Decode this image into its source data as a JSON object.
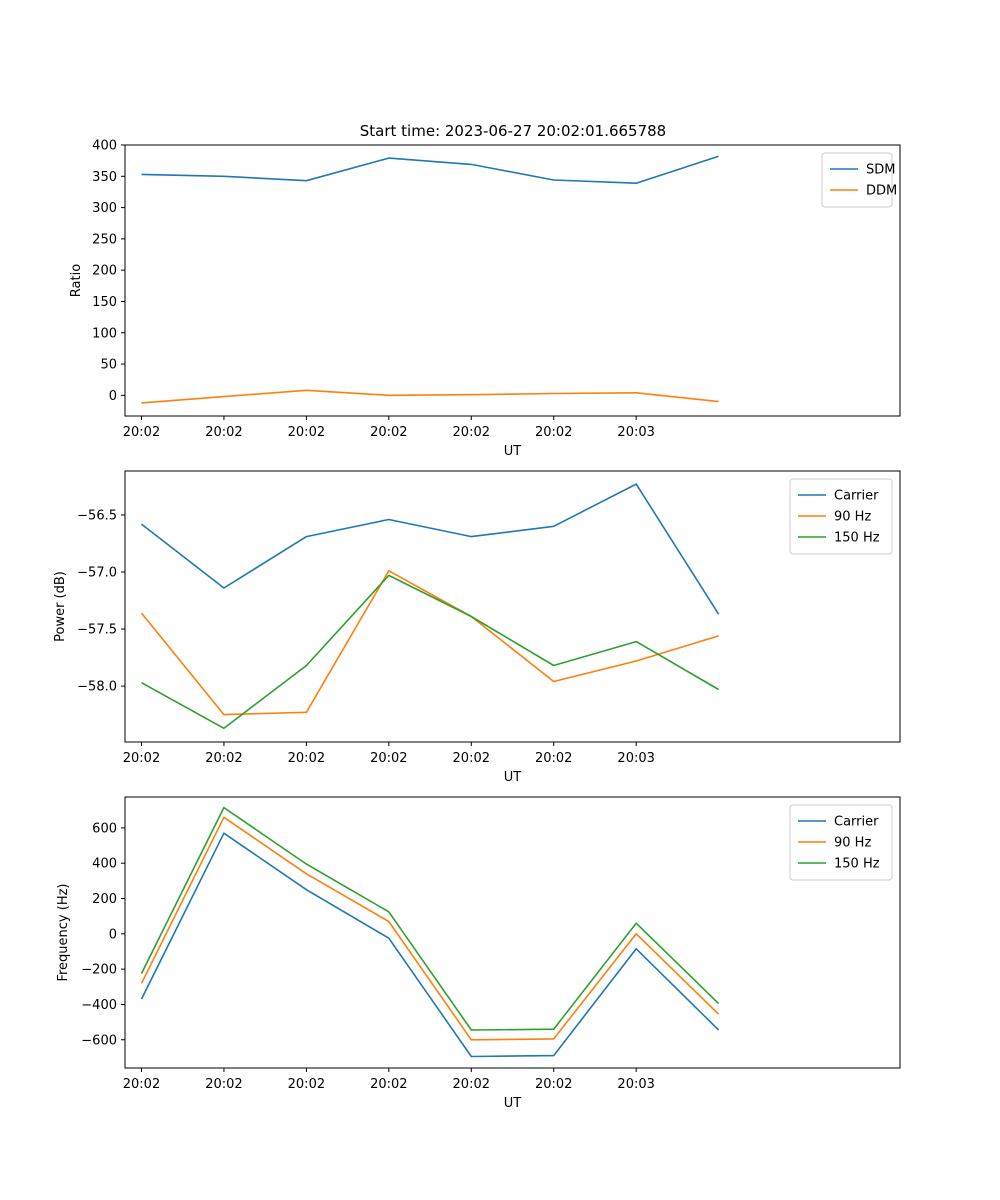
{
  "figure": {
    "title": "Start time: 2023-06-27 20:02:01.665788"
  },
  "colors": {
    "blue": "#1f77b4",
    "orange": "#ff7f0e",
    "green": "#2ca02c",
    "axis": "#000000",
    "legend_border": "#cccccc"
  },
  "chart_data": [
    {
      "type": "line",
      "title": "Start time: 2023-06-27 20:02:01.665788",
      "xlabel": "UT",
      "ylabel": "Ratio",
      "x": [
        1,
        2,
        3,
        4,
        5,
        6,
        7,
        8
      ],
      "xlim": [
        0.8,
        10.2
      ],
      "x_ticks": [
        1,
        2,
        3,
        4,
        5,
        6,
        7
      ],
      "x_tick_labels": [
        "20:02",
        "20:02",
        "20:02",
        "20:02",
        "20:02",
        "20:02",
        "20:03"
      ],
      "y_ticks": [
        0,
        50,
        100,
        150,
        200,
        250,
        300,
        350,
        400
      ],
      "ylim": [
        -33,
        400
      ],
      "grid": false,
      "legend_position": "top-right",
      "series": [
        {
          "name": "SDM",
          "color": "#1f77b4",
          "values": [
            353,
            350,
            343,
            379,
            369,
            344,
            339,
            382
          ]
        },
        {
          "name": "DDM",
          "color": "#ff7f0e",
          "values": [
            -12,
            -2,
            8,
            0,
            1,
            3,
            4,
            -10
          ]
        }
      ]
    },
    {
      "type": "line",
      "xlabel": "UT",
      "ylabel": "Power (dB)",
      "x": [
        1,
        2,
        3,
        4,
        5,
        6,
        7,
        8
      ],
      "xlim": [
        0.8,
        10.2
      ],
      "x_ticks": [
        1,
        2,
        3,
        4,
        5,
        6,
        7
      ],
      "x_tick_labels": [
        "20:02",
        "20:02",
        "20:02",
        "20:02",
        "20:02",
        "20:02",
        "20:03"
      ],
      "y_ticks": [
        -56.5,
        -57.0,
        -57.5,
        -58.0
      ],
      "y_tick_labels": [
        "−56.5",
        "−57.0",
        "−57.5",
        "−58.0"
      ],
      "ylim": [
        -58.49,
        -56.115
      ],
      "grid": false,
      "legend_position": "top-right",
      "series": [
        {
          "name": "Carrier",
          "color": "#1f77b4",
          "values": [
            -56.58,
            -57.14,
            -56.69,
            -56.54,
            -56.69,
            -56.6,
            -56.23,
            -57.37
          ]
        },
        {
          "name": "90 Hz",
          "color": "#ff7f0e",
          "values": [
            -57.36,
            -58.25,
            -58.23,
            -56.99,
            -57.39,
            -57.96,
            -57.78,
            -57.56
          ]
        },
        {
          "name": "150 Hz",
          "color": "#2ca02c",
          "values": [
            -57.97,
            -58.37,
            -57.82,
            -57.03,
            -57.39,
            -57.82,
            -57.61,
            -58.03
          ]
        }
      ]
    },
    {
      "type": "line",
      "xlabel": "UT",
      "ylabel": "Frequency (Hz)",
      "x": [
        1,
        2,
        3,
        4,
        5,
        6,
        7,
        8
      ],
      "xlim": [
        0.8,
        10.2
      ],
      "x_ticks": [
        1,
        2,
        3,
        4,
        5,
        6,
        7
      ],
      "x_tick_labels": [
        "20:02",
        "20:02",
        "20:02",
        "20:02",
        "20:02",
        "20:02",
        "20:03"
      ],
      "y_ticks": [
        600,
        400,
        200,
        0,
        -200,
        -400,
        -600
      ],
      "y_tick_labels": [
        "600",
        "400",
        "200",
        "0",
        "−200",
        "−400",
        "−600"
      ],
      "ylim": [
        -760,
        775
      ],
      "grid": false,
      "legend_position": "top-right",
      "series": [
        {
          "name": "Carrier",
          "color": "#1f77b4",
          "values": [
            -370,
            570,
            250,
            -25,
            -695,
            -690,
            -85,
            -545
          ]
        },
        {
          "name": "90 Hz",
          "color": "#ff7f0e",
          "values": [
            -280,
            660,
            340,
            70,
            -600,
            -595,
            0,
            -455
          ]
        },
        {
          "name": "150 Hz",
          "color": "#2ca02c",
          "values": [
            -225,
            715,
            395,
            125,
            -545,
            -540,
            60,
            -395
          ]
        }
      ]
    }
  ]
}
